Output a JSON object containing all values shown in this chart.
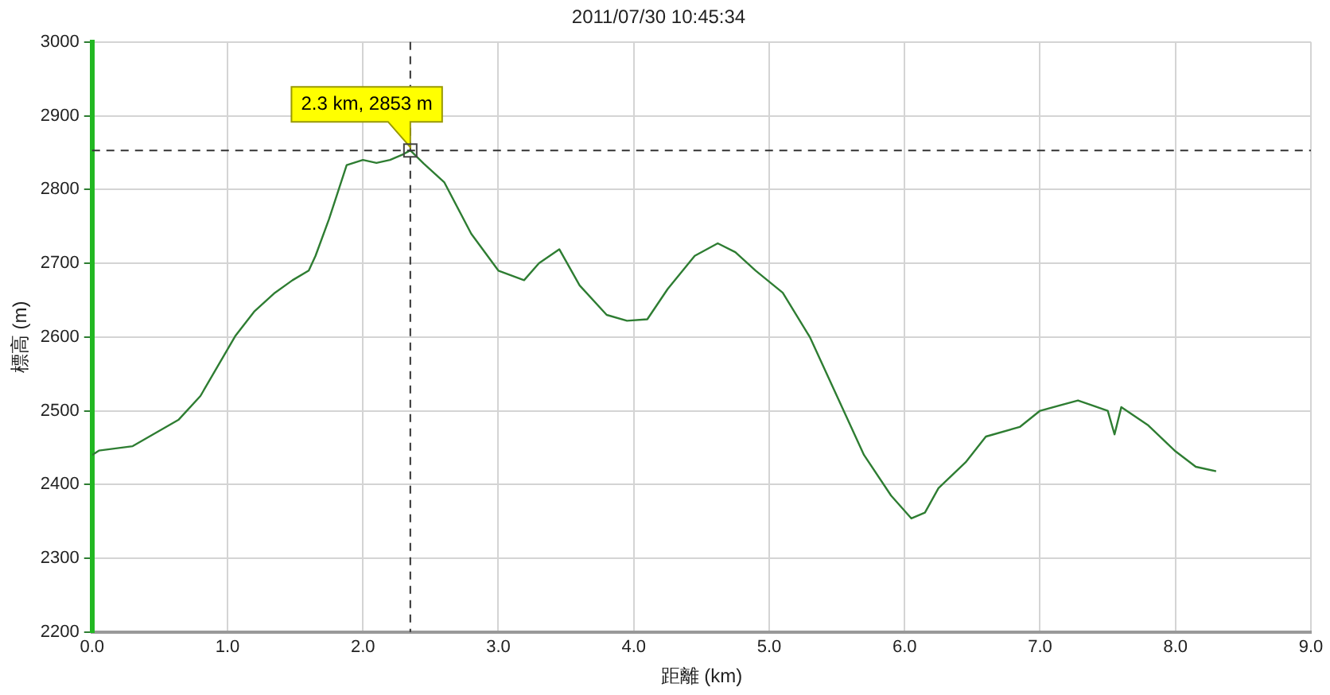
{
  "chart_data": {
    "type": "line",
    "title": "2011/07/30 10:45:34",
    "xlabel": "距離 (km)",
    "ylabel": "標高 (m)",
    "series": [
      {
        "color": "#2e7d32",
        "x": [
          0,
          0.05,
          0.3,
          0.64,
          0.8,
          1.06,
          1.2,
          1.35,
          1.48,
          1.6,
          1.65,
          1.75,
          1.88,
          2.0,
          2.1,
          2.2,
          2.3,
          2.35,
          2.45,
          2.6,
          2.8,
          3.0,
          3.19,
          3.3,
          3.45,
          3.6,
          3.8,
          3.95,
          4.1,
          4.25,
          4.45,
          4.62,
          4.75,
          4.9,
          5.1,
          5.3,
          5.5,
          5.7,
          5.9,
          6.05,
          6.15,
          6.25,
          6.45,
          6.6,
          6.85,
          7.0,
          7.28,
          7.5,
          7.55,
          7.6,
          7.8,
          8.0,
          8.15,
          8.3
        ],
        "values": [
          2440,
          2446,
          2452,
          2488,
          2520,
          2602,
          2635,
          2660,
          2677,
          2690,
          2710,
          2760,
          2833,
          2840,
          2836,
          2840,
          2848,
          2853,
          2835,
          2810,
          2740,
          2690,
          2677,
          2700,
          2719,
          2670,
          2630,
          2622,
          2624,
          2665,
          2710,
          2727,
          2715,
          2690,
          2660,
          2600,
          2520,
          2440,
          2385,
          2354,
          2362,
          2395,
          2430,
          2465,
          2478,
          2500,
          2514,
          2500,
          2468,
          2505,
          2480,
          2445,
          2424,
          2418
        ]
      }
    ],
    "xlim": [
      0,
      9
    ],
    "ylim": [
      2200,
      3000
    ],
    "xticks": [
      {
        "value": 0,
        "label": "0.0"
      },
      {
        "value": 1,
        "label": "1.0"
      },
      {
        "value": 2,
        "label": "2.0"
      },
      {
        "value": 3,
        "label": "3.0"
      },
      {
        "value": 4,
        "label": "4.0"
      },
      {
        "value": 5,
        "label": "5.0"
      },
      {
        "value": 6,
        "label": "6.0"
      },
      {
        "value": 7,
        "label": "7.0"
      },
      {
        "value": 8,
        "label": "8.0"
      },
      {
        "value": 9,
        "label": "9.0"
      }
    ],
    "yticks": [
      2200,
      2300,
      2400,
      2500,
      2600,
      2700,
      2800,
      2900,
      3000
    ],
    "ref_lines": [
      {
        "axis": "x",
        "value": 2.35,
        "label": null,
        "color": "#333333",
        "line_style": "dashed"
      },
      {
        "axis": "y",
        "value": 2853,
        "label": null,
        "color": "#333333",
        "line_style": "dashed"
      }
    ],
    "annotations": [
      {
        "text": "2.3 km, 2853 m",
        "x": 2.35,
        "y": 2853
      }
    ],
    "grid": true,
    "legend": false,
    "marker": "none",
    "line_style": "solid"
  }
}
